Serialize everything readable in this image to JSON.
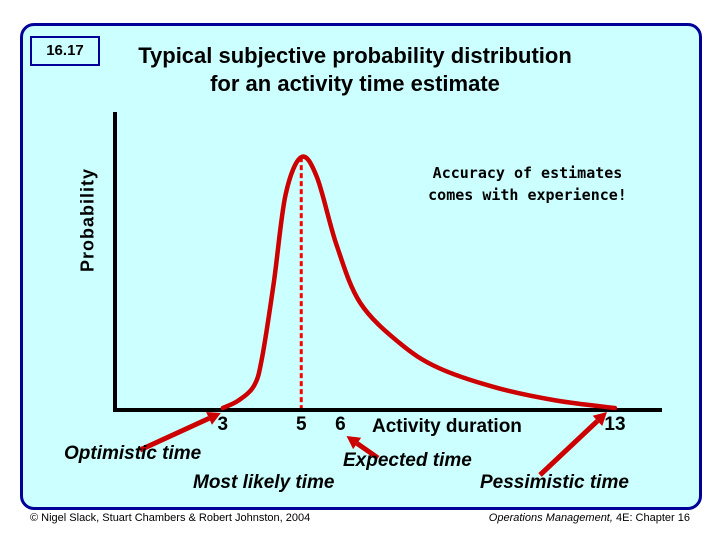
{
  "slide_number": "16.17",
  "title_line1": "Typical subjective probability distribution",
  "title_line2": "for an activity time estimate",
  "note_line1": "Accuracy of estimates",
  "note_line2": "comes with experience!",
  "chart_data": {
    "type": "line",
    "title": "Typical subjective probability distribution for an activity time estimate",
    "xlabel": "Activity duration",
    "ylabel": "Probability",
    "x_ticks": [
      {
        "value": 3,
        "label": "3"
      },
      {
        "value": 5,
        "label": "5"
      },
      {
        "value": 6,
        "label": "6"
      },
      {
        "value": 13,
        "label": "13"
      }
    ],
    "annotations": {
      "optimistic": {
        "x": 3,
        "label": "Optimistic time"
      },
      "most_likely": {
        "x": 5,
        "label": "Most likely time"
      },
      "expected": {
        "x": 6,
        "label": "Expected time"
      },
      "pessimistic": {
        "x": 13,
        "label": "Pessimistic time"
      }
    },
    "curve": [
      [
        3,
        0.0
      ],
      [
        3.4,
        0.03
      ],
      [
        3.8,
        0.09
      ],
      [
        4.0,
        0.2
      ],
      [
        4.3,
        0.5
      ],
      [
        4.6,
        0.85
      ],
      [
        5.0,
        1.0
      ],
      [
        5.4,
        0.92
      ],
      [
        5.9,
        0.65
      ],
      [
        6.5,
        0.42
      ],
      [
        7.5,
        0.26
      ],
      [
        8.5,
        0.16
      ],
      [
        10.0,
        0.08
      ],
      [
        11.5,
        0.03
      ],
      [
        13.0,
        0.0
      ]
    ],
    "xlim": [
      0.25,
      14.2
    ],
    "ylim": [
      0,
      1.18
    ]
  },
  "footer_left": "© Nigel Slack, Stuart Chambers & Robert Johnston, 2004",
  "footer_right_italic": "Operations Management,",
  "footer_right_rest": " 4E: Chapter 16",
  "colors": {
    "background": "#ccffff",
    "border": "#000099",
    "curve": "#cc0000"
  }
}
